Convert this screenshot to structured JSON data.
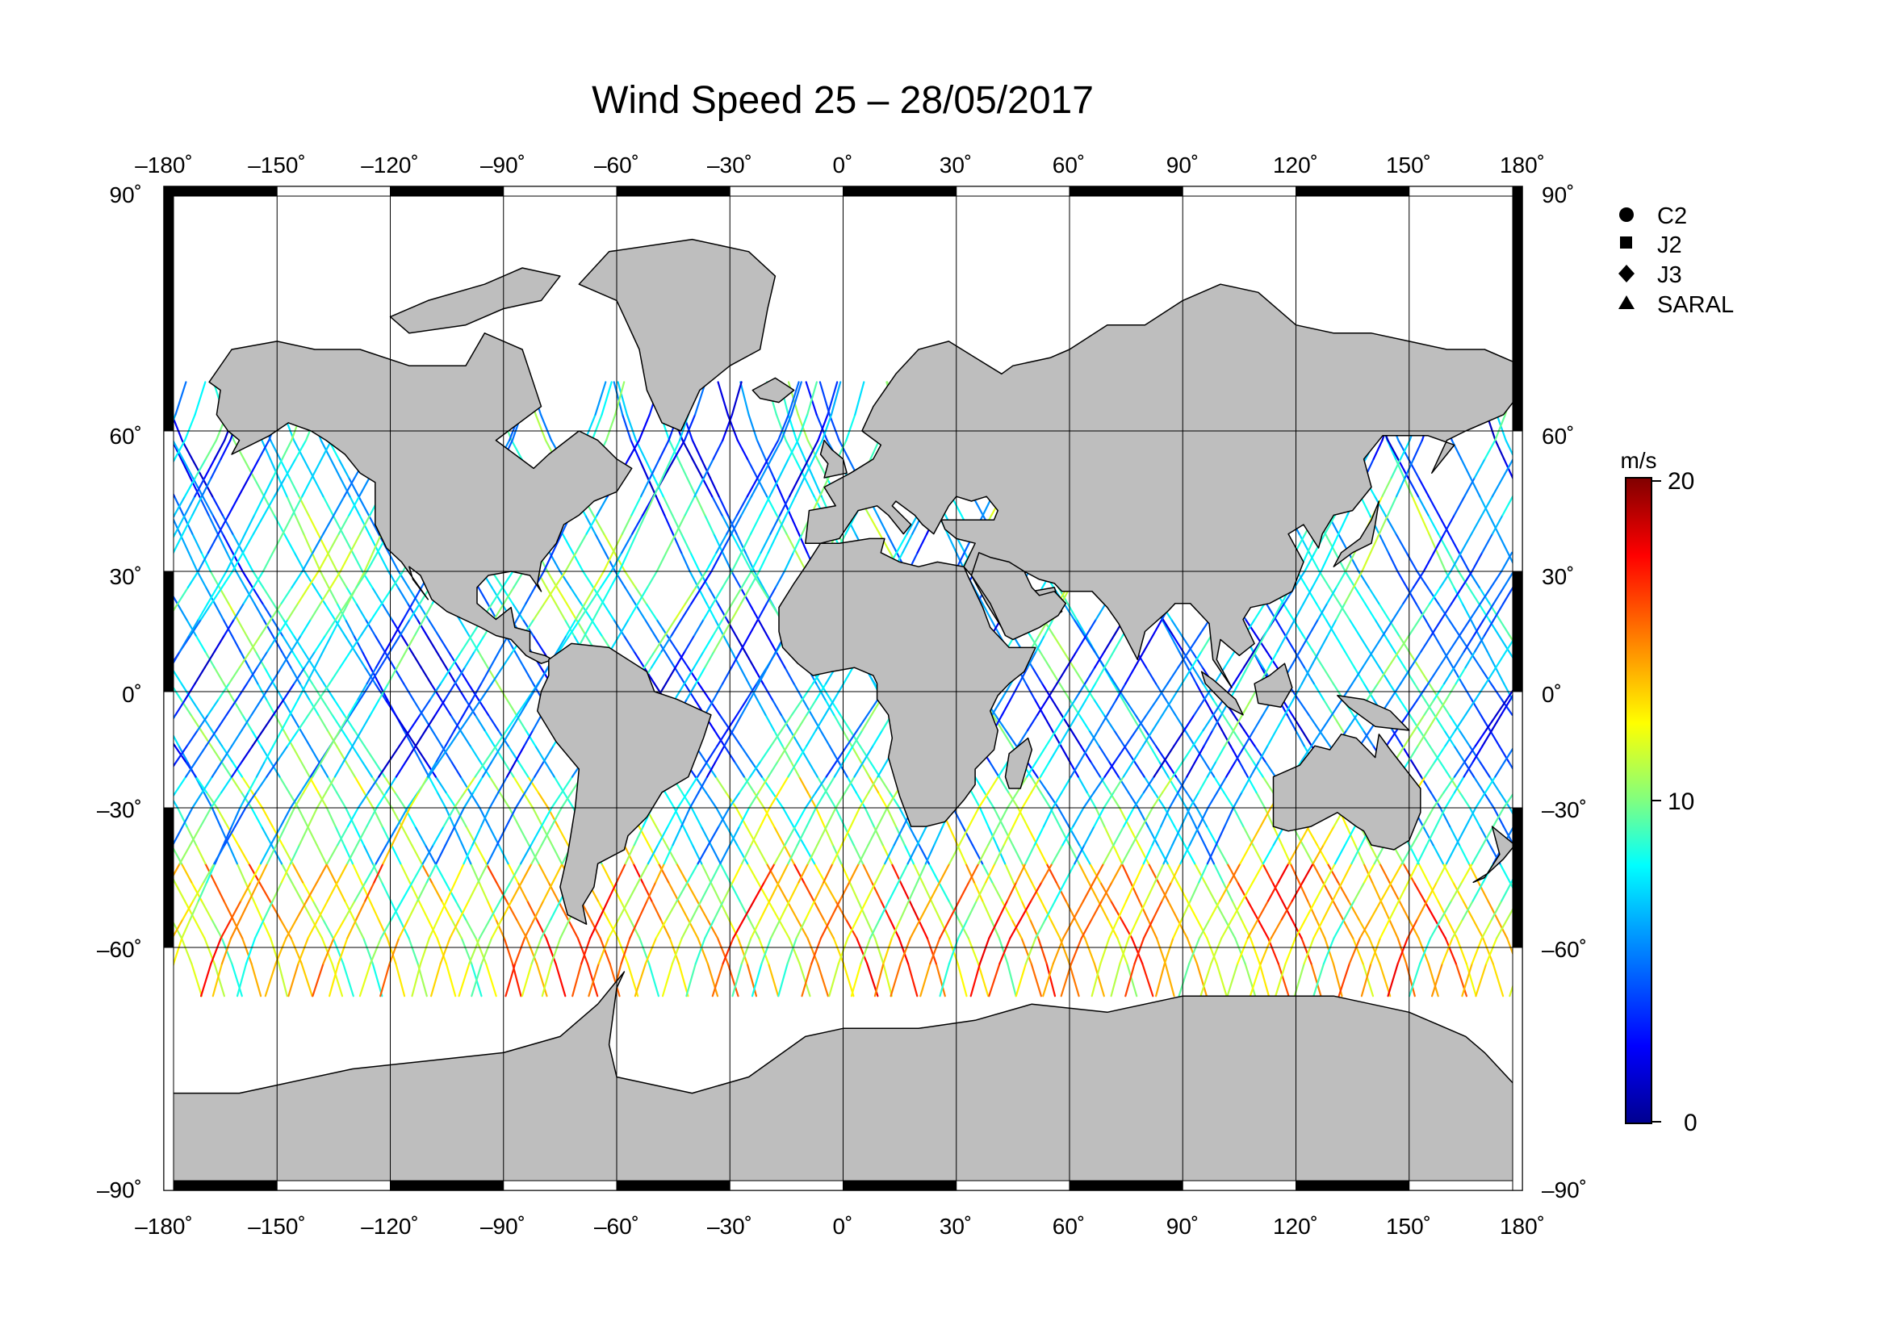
{
  "title": "Wind Speed 25 – 28/05/2017",
  "map": {
    "lon_ticks": [
      "–180˚",
      "–150˚",
      "–120˚",
      "–90˚",
      "–60˚",
      "–30˚",
      "0˚",
      "30˚",
      "60˚",
      "90˚",
      "120˚",
      "150˚",
      "180˚"
    ],
    "lat_ticks": [
      "90˚",
      "60˚",
      "30˚",
      "0˚",
      "–30˚",
      "–60˚",
      "–90˚"
    ],
    "lat_ticks_right": [
      "90˚",
      "60˚",
      "30˚",
      "0˚",
      "–30˚",
      "–60˚",
      "–90˚"
    ],
    "lon_range": [
      -180,
      180
    ],
    "lat_range": [
      -90,
      90
    ],
    "land_color": "#bebebe",
    "ocean_color": "#ffffff",
    "grid": true
  },
  "legend": {
    "items": [
      {
        "label": "C2",
        "symbol": "circle"
      },
      {
        "label": "J2",
        "symbol": "square"
      },
      {
        "label": "J3",
        "symbol": "diamond"
      },
      {
        "label": "SARAL",
        "symbol": "triangle"
      }
    ]
  },
  "colorbar": {
    "unit": "m/s",
    "min_label": "0",
    "mid_label": "10",
    "max_label": "20",
    "range": [
      0,
      20
    ],
    "colormap": [
      "#00008f",
      "#0000ff",
      "#00a0ff",
      "#00ffff",
      "#80ff80",
      "#ffff00",
      "#ff8000",
      "#ff0000",
      "#800000"
    ]
  },
  "chart_data": {
    "type": "scatter",
    "title": "Wind Speed 25 – 28/05/2017",
    "description_units": "m/s",
    "value_range": [
      0,
      20
    ],
    "xlim": [
      -180,
      180
    ],
    "ylim": [
      -90,
      90
    ],
    "series": [
      {
        "name": "C2"
      },
      {
        "name": "J2"
      },
      {
        "name": "J3"
      },
      {
        "name": "SARAL"
      }
    ],
    "regional_wind_m_s": [
      {
        "lat_band": [
          -65,
          -40
        ],
        "typical": 13,
        "max": 20
      },
      {
        "lat_band": [
          -40,
          -20
        ],
        "typical": 9
      },
      {
        "lat_band": [
          -20,
          20
        ],
        "typical": 6
      },
      {
        "lat_band": [
          20,
          50
        ],
        "typical": 7
      },
      {
        "lat_band": [
          50,
          66
        ],
        "typical": 6
      }
    ]
  }
}
